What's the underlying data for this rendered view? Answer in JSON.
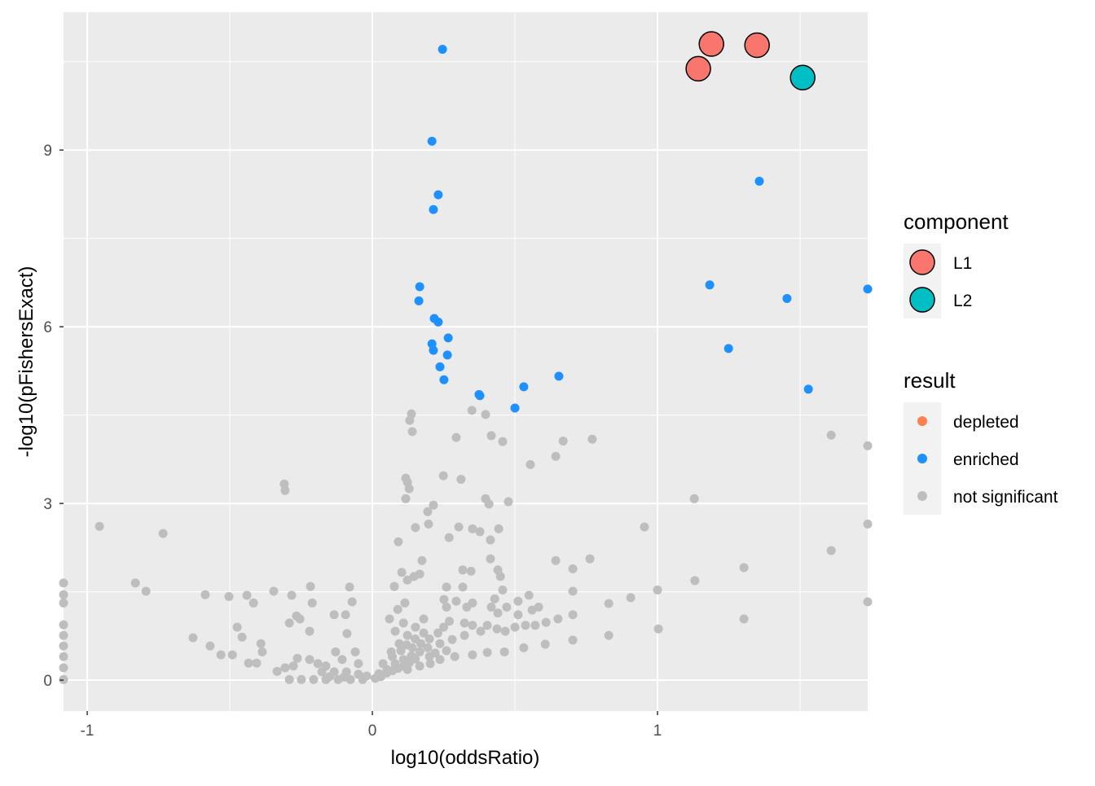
{
  "chart_data": {
    "type": "scatter",
    "title": "",
    "xlabel": "log10(oddsRatio)",
    "ylabel": "-log10(pFishersExact)",
    "xlim": [
      -1.083,
      1.737
    ],
    "ylim": [
      -0.525,
      11.34
    ],
    "x_ticks": [
      -1,
      0,
      1
    ],
    "y_ticks": [
      0,
      3,
      6,
      9
    ],
    "x_tick_labels": [
      "-1",
      "0",
      "1"
    ],
    "y_tick_labels": [
      "0",
      "3",
      "6",
      "9"
    ],
    "grid": true,
    "legend_placement": "right",
    "legends": {
      "component": {
        "title": "component",
        "entries": [
          {
            "label": "L1",
            "color": "#F8766D"
          },
          {
            "label": "L2",
            "color": "#00BFC4"
          }
        ]
      },
      "result": {
        "title": "result",
        "entries": [
          {
            "label": "depleted",
            "color": "#FF7F50"
          },
          {
            "label": "enriched",
            "color": "#1E90FF"
          },
          {
            "label": "not significant",
            "color": "#BEBEBE"
          }
        ]
      }
    },
    "series": [
      {
        "name": "enriched",
        "color": "#1E90FF",
        "points": [
          [
            0.246,
            10.71
          ],
          [
            0.209,
            9.15
          ],
          [
            0.231,
            8.24
          ],
          [
            0.214,
            7.99
          ],
          [
            0.166,
            6.68
          ],
          [
            0.163,
            6.44
          ],
          [
            0.217,
            6.14
          ],
          [
            0.231,
            6.08
          ],
          [
            0.266,
            5.81
          ],
          [
            0.209,
            5.71
          ],
          [
            0.214,
            5.6
          ],
          [
            0.263,
            5.52
          ],
          [
            0.237,
            5.32
          ],
          [
            0.251,
            5.1
          ],
          [
            0.374,
            4.85
          ],
          [
            0.377,
            4.83
          ],
          [
            0.531,
            4.98
          ],
          [
            0.654,
            5.16
          ],
          [
            0.5,
            4.62
          ],
          [
            1.357,
            8.47
          ],
          [
            1.183,
            6.71
          ],
          [
            1.454,
            6.48
          ],
          [
            1.737,
            6.64
          ],
          [
            1.249,
            5.63
          ],
          [
            1.529,
            4.94
          ],
          [
            1.189,
            10.8
          ],
          [
            1.349,
            10.78
          ],
          [
            1.143,
            10.38
          ],
          [
            1.509,
            10.23
          ]
        ]
      },
      {
        "name": "not significant",
        "color": "#BEBEBE",
        "points": [
          [
            -0.957,
            2.61
          ],
          [
            -0.734,
            2.49
          ],
          [
            -0.831,
            1.65
          ],
          [
            -0.794,
            1.51
          ],
          [
            -0.309,
            3.33
          ],
          [
            -0.306,
            3.22
          ],
          [
            -1.083,
            1.65
          ],
          [
            -1.083,
            1.45
          ],
          [
            -1.083,
            1.31
          ],
          [
            -1.083,
            0.94
          ],
          [
            -1.083,
            0.76
          ],
          [
            -1.083,
            0.58
          ],
          [
            -1.083,
            0.4
          ],
          [
            -1.083,
            0.21
          ],
          [
            -1.083,
            0.01
          ],
          [
            -0.586,
            1.45
          ],
          [
            -0.503,
            1.42
          ],
          [
            -0.44,
            1.44
          ],
          [
            -0.417,
            1.31
          ],
          [
            -0.346,
            1.51
          ],
          [
            -0.283,
            1.44
          ],
          [
            -0.217,
            1.59
          ],
          [
            -0.211,
            1.31
          ],
          [
            -0.08,
            1.58
          ],
          [
            -0.071,
            1.33
          ],
          [
            -0.629,
            0.72
          ],
          [
            -0.569,
            0.58
          ],
          [
            -0.474,
            0.9
          ],
          [
            -0.457,
            0.73
          ],
          [
            -0.386,
            0.48
          ],
          [
            -0.391,
            0.62
          ],
          [
            -0.291,
            0.97
          ],
          [
            -0.266,
            1.09
          ],
          [
            -0.254,
            1.04
          ],
          [
            -0.134,
            1.11
          ],
          [
            -0.089,
            0.79
          ],
          [
            -0.094,
            1.11
          ],
          [
            -0.22,
            0.83
          ],
          [
            -0.531,
            0.43
          ],
          [
            -0.491,
            0.43
          ],
          [
            -0.434,
            0.29
          ],
          [
            -0.406,
            0.29
          ],
          [
            -0.334,
            0.15
          ],
          [
            -0.306,
            0.21
          ],
          [
            -0.277,
            0.24
          ],
          [
            -0.263,
            0.37
          ],
          [
            -0.22,
            0.35
          ],
          [
            -0.191,
            0.28
          ],
          [
            -0.163,
            0.24
          ],
          [
            -0.129,
            0.48
          ],
          [
            -0.106,
            0.35
          ],
          [
            -0.06,
            0.48
          ],
          [
            -0.049,
            0.28
          ],
          [
            -0.291,
            0.01
          ],
          [
            -0.249,
            0.01
          ],
          [
            -0.206,
            0.01
          ],
          [
            -0.163,
            0.01
          ],
          [
            -0.12,
            0.01
          ],
          [
            -0.077,
            0.01
          ],
          [
            -0.034,
            0.01
          ],
          [
            -0.177,
            0.14
          ],
          [
            -0.134,
            0.14
          ],
          [
            -0.091,
            0.14
          ],
          [
            -0.049,
            0.1
          ],
          [
            -0.02,
            0.07
          ],
          [
            -0.1,
            0.05
          ],
          [
            -0.15,
            0.06
          ],
          [
            0.023,
            0.11
          ],
          [
            0.051,
            0.18
          ],
          [
            0.08,
            0.28
          ],
          [
            0.109,
            0.35
          ],
          [
            0.137,
            0.41
          ],
          [
            0.166,
            0.48
          ],
          [
            0.194,
            0.55
          ],
          [
            0.237,
            0.62
          ],
          [
            0.28,
            0.69
          ],
          [
            0.323,
            0.76
          ],
          [
            0.38,
            0.83
          ],
          [
            0.437,
            0.87
          ],
          [
            0.037,
            0.28
          ],
          [
            0.066,
            0.48
          ],
          [
            0.094,
            0.62
          ],
          [
            0.123,
            0.76
          ],
          [
            0.151,
            0.9
          ],
          [
            0.18,
            1.04
          ],
          [
            0.08,
            0.83
          ],
          [
            0.109,
            0.97
          ],
          [
            0.06,
            1.04
          ],
          [
            0.089,
            1.2
          ],
          [
            0.114,
            1.31
          ],
          [
            0.077,
            1.59
          ],
          [
            0.103,
            1.83
          ],
          [
            0.123,
            1.7
          ],
          [
            0.146,
            1.76
          ],
          [
            0.166,
            1.8
          ],
          [
            0.174,
            2.03
          ],
          [
            0.091,
            2.35
          ],
          [
            0.151,
            2.59
          ],
          [
            0.197,
            2.65
          ],
          [
            0.194,
            2.86
          ],
          [
            0.214,
            2.97
          ],
          [
            0.117,
            3.43
          ],
          [
            0.123,
            3.36
          ],
          [
            0.129,
            3.25
          ],
          [
            0.117,
            3.08
          ],
          [
            0.137,
            4.52
          ],
          [
            0.131,
            4.41
          ],
          [
            0.14,
            4.22
          ],
          [
            0.249,
            3.47
          ],
          [
            0.311,
            3.41
          ],
          [
            0.294,
            4.12
          ],
          [
            0.349,
            4.58
          ],
          [
            0.397,
            4.51
          ],
          [
            0.417,
            4.15
          ],
          [
            0.457,
            4.05
          ],
          [
            0.554,
            3.66
          ],
          [
            0.397,
            3.08
          ],
          [
            0.409,
            2.99
          ],
          [
            0.477,
            3.03
          ],
          [
            0.303,
            2.6
          ],
          [
            0.351,
            2.57
          ],
          [
            0.443,
            2.57
          ],
          [
            0.269,
            2.42
          ],
          [
            0.377,
            2.52
          ],
          [
            0.414,
            2.38
          ],
          [
            0.414,
            2.06
          ],
          [
            0.44,
            1.87
          ],
          [
            0.449,
            1.76
          ],
          [
            0.317,
            1.87
          ],
          [
            0.346,
            1.85
          ],
          [
            0.26,
            1.58
          ],
          [
            0.317,
            1.58
          ],
          [
            0.457,
            1.53
          ],
          [
            0.429,
            1.38
          ],
          [
            0.294,
            1.34
          ],
          [
            0.251,
            1.37
          ],
          [
            0.26,
            1.24
          ],
          [
            0.331,
            1.24
          ],
          [
            0.351,
            1.31
          ],
          [
            0.417,
            1.24
          ],
          [
            0.471,
            1.24
          ],
          [
            0.511,
            1.34
          ],
          [
            0.549,
            1.44
          ],
          [
            0.511,
            1.11
          ],
          [
            0.56,
            1.19
          ],
          [
            0.583,
            1.24
          ],
          [
            0.44,
            1.14
          ],
          [
            0.403,
            0.93
          ],
          [
            0.351,
            0.93
          ],
          [
            0.323,
            0.97
          ],
          [
            0.466,
            0.83
          ],
          [
            0.5,
            0.9
          ],
          [
            0.537,
            0.93
          ],
          [
            0.571,
            0.93
          ],
          [
            0.609,
            0.98
          ],
          [
            0.651,
            1.04
          ],
          [
            0.703,
            1.11
          ],
          [
            0.703,
            1.51
          ],
          [
            0.703,
            1.89
          ],
          [
            0.643,
            2.03
          ],
          [
            0.763,
            2.06
          ],
          [
            0.403,
            0.47
          ],
          [
            0.463,
            0.48
          ],
          [
            0.531,
            0.55
          ],
          [
            0.606,
            0.61
          ],
          [
            0.703,
            0.68
          ],
          [
            0.351,
            0.43
          ],
          [
            0.289,
            0.4
          ],
          [
            0.237,
            0.35
          ],
          [
            0.203,
            0.28
          ],
          [
            0.166,
            0.24
          ],
          [
            0.123,
            0.18
          ],
          [
            0.643,
            3.8
          ],
          [
            0.669,
            4.06
          ],
          [
            0.771,
            4.09
          ],
          [
            1.0,
            1.53
          ],
          [
            1.003,
            0.87
          ],
          [
            0.829,
            1.3
          ],
          [
            0.829,
            0.76
          ],
          [
            0.906,
            1.4
          ],
          [
            0.954,
            2.6
          ],
          [
            1.129,
            3.08
          ],
          [
            1.131,
            1.69
          ],
          [
            1.303,
            1.91
          ],
          [
            1.303,
            1.04
          ],
          [
            1.609,
            4.16
          ],
          [
            1.609,
            2.2
          ],
          [
            1.737,
            3.98
          ],
          [
            1.737,
            2.65
          ],
          [
            1.737,
            1.33
          ],
          [
            0.01,
            0.03
          ],
          [
            0.03,
            0.06
          ],
          [
            0.05,
            0.12
          ],
          [
            0.07,
            0.16
          ],
          [
            0.09,
            0.2
          ],
          [
            0.11,
            0.24
          ],
          [
            0.13,
            0.3
          ],
          [
            0.15,
            0.36
          ],
          [
            0.2,
            0.4
          ],
          [
            0.22,
            0.46
          ],
          [
            0.26,
            0.5
          ],
          [
            0.07,
            0.4
          ],
          [
            0.1,
            0.5
          ],
          [
            0.12,
            0.6
          ],
          [
            0.15,
            0.7
          ],
          [
            0.18,
            0.8
          ],
          [
            0.2,
            0.7
          ],
          [
            0.23,
            0.8
          ],
          [
            0.25,
            0.9
          ],
          [
            0.27,
            1.0
          ],
          [
            0.14,
            0.55
          ],
          [
            0.17,
            0.62
          ]
        ]
      }
    ],
    "highlighted": [
      {
        "component": "L1",
        "x": 1.189,
        "y": 10.8
      },
      {
        "component": "L1",
        "x": 1.349,
        "y": 10.78
      },
      {
        "component": "L1",
        "x": 1.143,
        "y": 10.38
      },
      {
        "component": "L2",
        "x": 1.509,
        "y": 10.23
      }
    ],
    "colors": {
      "panel": "#EBEBEB",
      "grid": "#FFFFFF",
      "legend_key_bg": "#F2F2F2"
    }
  }
}
